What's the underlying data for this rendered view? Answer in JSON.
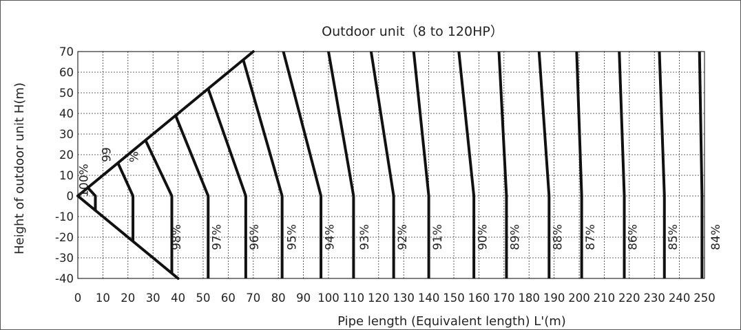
{
  "chart_data": {
    "type": "line",
    "title": "Outdoor unit（8 to 120HP）",
    "xlabel": "Pipe length (Equivalent length) L'(m)",
    "ylabel": "Height of outdoor unit H(m)",
    "xlim": [
      0,
      250
    ],
    "ylim": [
      -40,
      70
    ],
    "xticks": [
      0,
      10,
      20,
      30,
      40,
      50,
      60,
      70,
      80,
      90,
      100,
      110,
      120,
      130,
      140,
      150,
      160,
      170,
      180,
      190,
      200,
      210,
      220,
      230,
      240,
      250
    ],
    "yticks": [
      70,
      60,
      50,
      40,
      30,
      20,
      10,
      0,
      -10,
      -20,
      -30,
      -40
    ],
    "grid": "dashed",
    "boundary": {
      "upper": [
        [
          0,
          0
        ],
        [
          70,
          70
        ]
      ],
      "lower": [
        [
          0,
          0
        ],
        [
          40,
          -40
        ]
      ]
    },
    "series": [
      {
        "name": "100%",
        "points": [
          [
            4,
            4
          ],
          [
            7,
            0
          ],
          [
            7,
            -7.5
          ]
        ]
      },
      {
        "name": "99%",
        "points": [
          [
            16,
            16
          ],
          [
            22,
            0
          ],
          [
            22,
            -22
          ]
        ]
      },
      {
        "name": "98%",
        "points": [
          [
            27,
            27
          ],
          [
            37.5,
            0
          ],
          [
            37.5,
            -37.5
          ]
        ]
      },
      {
        "name": "97%",
        "points": [
          [
            39,
            39
          ],
          [
            52,
            0
          ],
          [
            52,
            -40
          ]
        ]
      },
      {
        "name": "96%",
        "points": [
          [
            52,
            52
          ],
          [
            67,
            0
          ],
          [
            67,
            -40
          ]
        ]
      },
      {
        "name": "95%",
        "points": [
          [
            66,
            66
          ],
          [
            81.5,
            0
          ],
          [
            81.5,
            -40
          ]
        ]
      },
      {
        "name": "94%",
        "points": [
          [
            82,
            70
          ],
          [
            97,
            0
          ],
          [
            97,
            -40
          ]
        ]
      },
      {
        "name": "93%",
        "points": [
          [
            100,
            70
          ],
          [
            110,
            0
          ],
          [
            110,
            -40
          ]
        ]
      },
      {
        "name": "92%",
        "points": [
          [
            117,
            70
          ],
          [
            126,
            0
          ],
          [
            126,
            -40
          ]
        ]
      },
      {
        "name": "91%",
        "points": [
          [
            134,
            70
          ],
          [
            140,
            0
          ],
          [
            140,
            -40
          ]
        ]
      },
      {
        "name": "90%",
        "points": [
          [
            152,
            70
          ],
          [
            158,
            0
          ],
          [
            158,
            -40
          ]
        ]
      },
      {
        "name": "89%",
        "points": [
          [
            168,
            70
          ],
          [
            171,
            0
          ],
          [
            171,
            -40
          ]
        ]
      },
      {
        "name": "88%",
        "points": [
          [
            184,
            70
          ],
          [
            188,
            0
          ],
          [
            188,
            -40
          ]
        ]
      },
      {
        "name": "87%",
        "points": [
          [
            199,
            70
          ],
          [
            201,
            0
          ],
          [
            201,
            -40
          ]
        ]
      },
      {
        "name": "86%",
        "points": [
          [
            216,
            70
          ],
          [
            218,
            0
          ],
          [
            218,
            -40
          ]
        ]
      },
      {
        "name": "85%",
        "points": [
          [
            232,
            70
          ],
          [
            234,
            0
          ],
          [
            234,
            -40
          ]
        ]
      },
      {
        "name": "84%",
        "points": [
          [
            248,
            70
          ],
          [
            249,
            0
          ],
          [
            249,
            -40
          ]
        ]
      }
    ],
    "curve_labels": [
      {
        "text": "100%",
        "at": [
          4,
          7.5
        ]
      },
      {
        "text": "99",
        "at": [
          13,
          20
        ]
      },
      {
        "text": "%",
        "at": [
          24,
          19
        ]
      },
      {
        "text": "98%",
        "at": [
          41,
          -20
        ]
      },
      {
        "text": "97%",
        "at": [
          57,
          -20
        ]
      },
      {
        "text": "96%",
        "at": [
          72,
          -20
        ]
      },
      {
        "text": "95%",
        "at": [
          87,
          -20
        ]
      },
      {
        "text": "94%",
        "at": [
          102,
          -20
        ]
      },
      {
        "text": "93%",
        "at": [
          116,
          -20
        ]
      },
      {
        "text": "92%",
        "at": [
          131,
          -20
        ]
      },
      {
        "text": "91%",
        "at": [
          145,
          -20
        ]
      },
      {
        "text": "90%",
        "at": [
          163,
          -20
        ]
      },
      {
        "text": "89%",
        "at": [
          176,
          -20
        ]
      },
      {
        "text": "88%",
        "at": [
          193,
          -20
        ]
      },
      {
        "text": "87%",
        "at": [
          206,
          -20
        ]
      },
      {
        "text": "86%",
        "at": [
          223,
          -20
        ]
      },
      {
        "text": "85%",
        "at": [
          239,
          -20
        ]
      },
      {
        "text": "84%",
        "at": [
          256,
          -20
        ]
      }
    ]
  }
}
